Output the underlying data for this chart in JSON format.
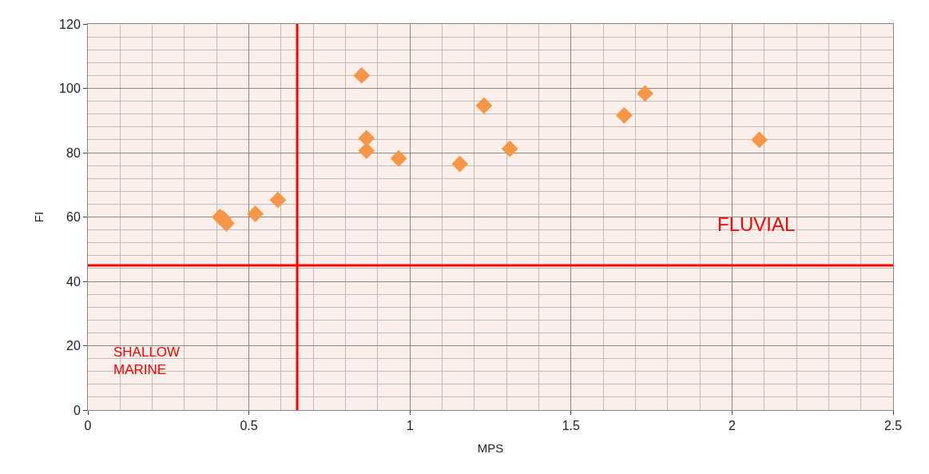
{
  "chart_data": {
    "type": "scatter",
    "xlabel": "MPS",
    "ylabel": "FI",
    "x": [
      0.41,
      0.42,
      0.43,
      0.52,
      0.59,
      0.85,
      0.865,
      0.865,
      0.965,
      1.155,
      1.23,
      1.31,
      1.665,
      1.73,
      2.085
    ],
    "series": [
      {
        "color": "#f79646",
        "values": [
          60,
          59.5,
          58,
          61,
          65.3,
          104,
          84.5,
          80.6,
          78.2,
          76.5,
          94.6,
          81.2,
          91.6,
          98.4,
          84
        ]
      }
    ],
    "xlim": [
      0,
      2.5
    ],
    "xticks": [
      0,
      0.5,
      1,
      1.5,
      2,
      2.5
    ],
    "ylim": [
      0,
      120
    ],
    "yticks": [
      0,
      20,
      40,
      60,
      80,
      100,
      120
    ],
    "ref_lines": [
      {
        "axis": "x",
        "value": 0.65,
        "color": "#ff0000"
      },
      {
        "axis": "y",
        "value": 45,
        "color": "#ff0000"
      }
    ],
    "annotations": [
      "FLUVIAL",
      "SHALLOW\nMARINE"
    ],
    "grid": true,
    "legend": false,
    "marker": "diamond"
  }
}
